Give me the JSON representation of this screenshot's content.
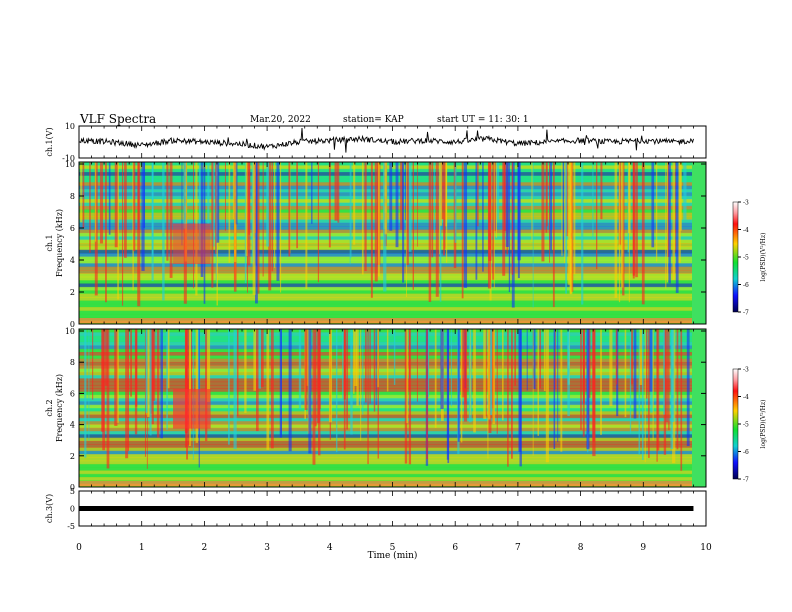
{
  "header": {
    "title": "VLF Spectra",
    "date": "Mar.20, 2022",
    "station": "station= KAP",
    "start": "start  UT  =   11: 30: 1"
  },
  "chart_data": [
    {
      "type": "line",
      "ylabel": "ch.1(V)",
      "ylim": [
        -10,
        10
      ],
      "yticks": [
        "10",
        "-10"
      ],
      "xlim": [
        0,
        10
      ],
      "description_values": "noisy waveform centered near 0 V",
      "x": [
        0,
        0.5,
        1,
        1.5,
        2,
        2.5,
        3,
        3.5,
        4,
        4.5,
        5,
        5.5,
        6,
        6.5,
        7,
        7.5,
        8,
        8.5,
        9,
        9.5,
        9.8
      ],
      "y": [
        1,
        0,
        -2,
        1,
        0,
        -1,
        -3,
        0,
        1,
        2,
        0,
        1,
        0,
        2,
        -1,
        0,
        1,
        0,
        1,
        0,
        1
      ]
    },
    {
      "type": "heatmap",
      "ylabel": "ch.1\nFrequency (kHz)",
      "ylim": [
        0,
        10
      ],
      "yticks": [
        "0",
        "2",
        "4",
        "6",
        "8",
        "10"
      ],
      "xlim": [
        0,
        10
      ],
      "colorbar": {
        "label": "log(PSD)(V²/Hz)",
        "range": [
          -7,
          -3
        ],
        "ticks": [
          "-3",
          "-4",
          "-5",
          "-6",
          "-7"
        ]
      }
    },
    {
      "type": "heatmap",
      "ylabel": "ch.2\nFrequency (kHz)",
      "ylim": [
        0,
        10
      ],
      "yticks": [
        "0",
        "2",
        "4",
        "6",
        "8",
        "10"
      ],
      "xlim": [
        0,
        10
      ],
      "colorbar": {
        "label": "log(PSD)(V²/Hz)",
        "range": [
          -7,
          -3
        ],
        "ticks": [
          "-3",
          "-4",
          "-5",
          "-6",
          "-7"
        ]
      }
    },
    {
      "type": "line",
      "ylabel": "ch.3(V)",
      "ylim": [
        -5,
        5
      ],
      "yticks": [
        "5",
        "0",
        "-5"
      ],
      "xlim": [
        0,
        10
      ],
      "x": [
        0,
        9.8
      ],
      "y": [
        0,
        0
      ]
    }
  ],
  "x_axis": {
    "label": "Time (min)",
    "ticks": [
      "0",
      "1",
      "2",
      "3",
      "4",
      "5",
      "6",
      "7",
      "8",
      "9",
      "10"
    ]
  }
}
